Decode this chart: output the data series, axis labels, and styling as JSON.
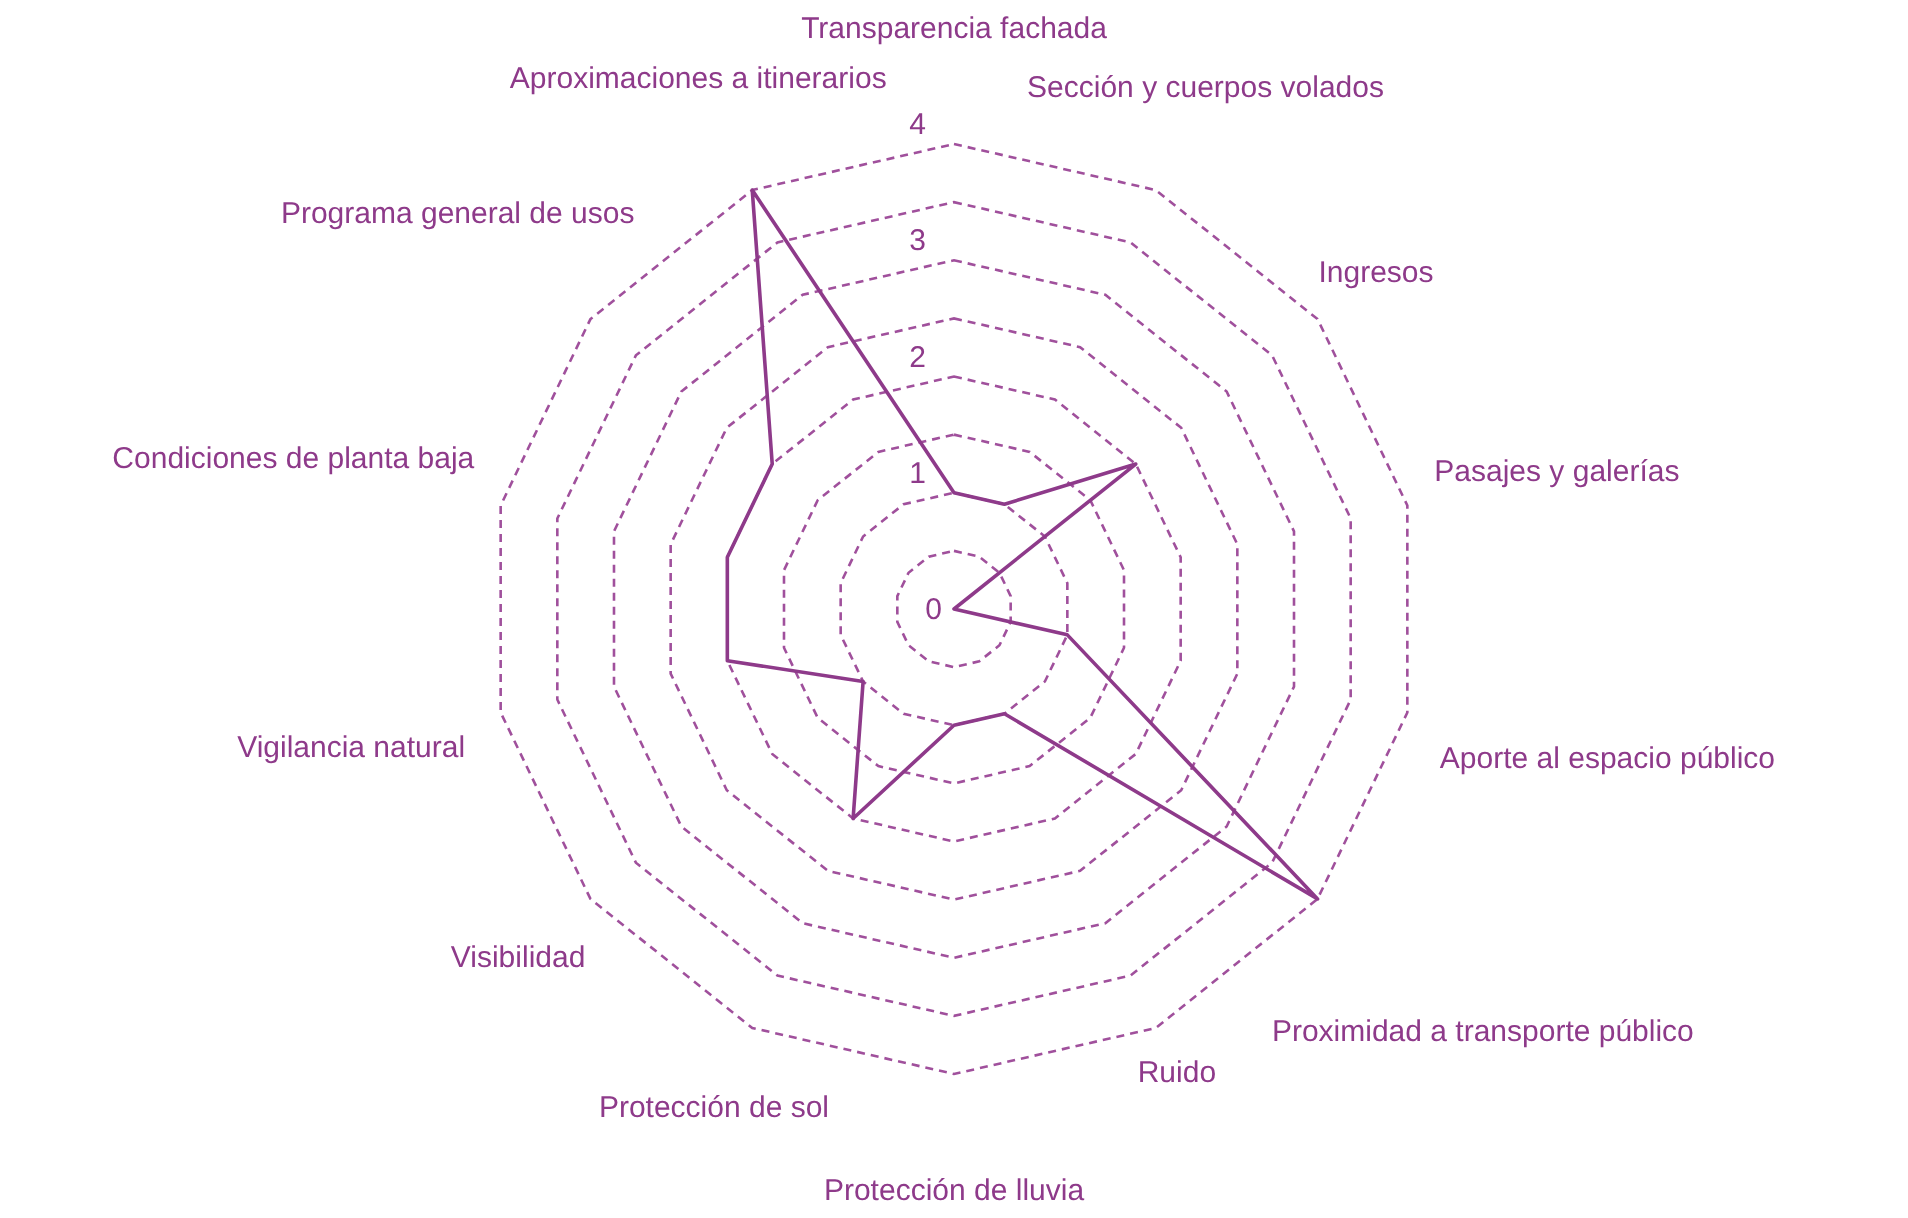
{
  "chart_data": {
    "type": "radar",
    "categories": [
      "Transparencia fachada",
      "Sección y cuerpos volados",
      "Ingresos",
      "Pasajes y galerías",
      "Aporte al espacio público",
      "Proximidad a transporte público",
      "Ruido",
      "Protección de lluvia",
      "Protección de sol",
      "Visibilidad",
      "Vigilancia natural",
      "Condiciones de planta baja",
      "Programa general de usos",
      "Aproximaciones a itinerarios"
    ],
    "series": [
      {
        "color": "#8e3a8a",
        "values": [
          1,
          1,
          2,
          0,
          1,
          4,
          1,
          1,
          2,
          1,
          2,
          2,
          2,
          4
        ]
      }
    ],
    "ylim": [
      0,
      4
    ],
    "yticks": [
      0,
      1,
      2,
      3,
      4
    ],
    "grid": true,
    "marker": "none",
    "line_style": "solid"
  }
}
